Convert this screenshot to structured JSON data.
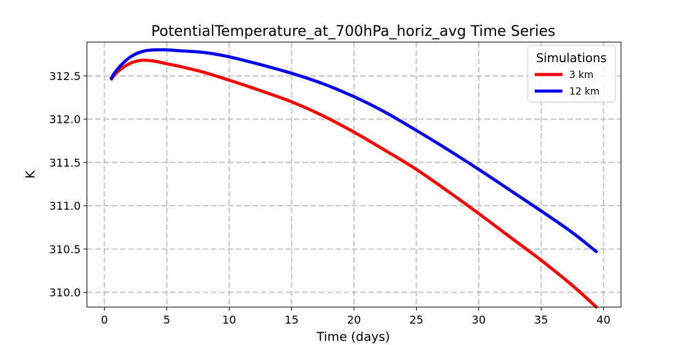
{
  "chart_data": {
    "type": "line",
    "title": "PotentialTemperature_at_700hPa_horiz_avg Time Series",
    "xlabel": "Time (days)",
    "ylabel": "K",
    "xlim": [
      -1.4,
      41.4
    ],
    "ylim": [
      309.83,
      312.89
    ],
    "xticks": [
      0,
      5,
      10,
      15,
      20,
      25,
      30,
      35,
      40
    ],
    "yticks": [
      310.0,
      310.5,
      311.0,
      311.5,
      312.0,
      312.5
    ],
    "xtick_labels": [
      "0",
      "5",
      "10",
      "15",
      "20",
      "25",
      "30",
      "35",
      "40"
    ],
    "ytick_labels": [
      "310.0",
      "310.5",
      "311.0",
      "311.5",
      "312.0",
      "312.5"
    ],
    "grid": true,
    "legend": {
      "title": "Simulations",
      "position": "top-right"
    },
    "series": [
      {
        "name": "3 km",
        "color": "#ff0000",
        "x": [
          0.5,
          1.0,
          2.0,
          3.0,
          4.0,
          5.0,
          6.0,
          8.0,
          10.0,
          12.5,
          15.0,
          17.5,
          20.0,
          22.5,
          25.0,
          27.5,
          30.0,
          32.5,
          35.0,
          37.5,
          39.5
        ],
        "y": [
          312.45,
          312.54,
          312.64,
          312.68,
          312.67,
          312.64,
          312.61,
          312.54,
          312.45,
          312.33,
          312.2,
          312.04,
          311.85,
          311.64,
          311.42,
          311.17,
          310.91,
          310.64,
          310.37,
          310.08,
          309.82
        ]
      },
      {
        "name": "12 km",
        "color": "#0000ee",
        "x": [
          0.5,
          1.0,
          2.0,
          3.0,
          4.0,
          5.0,
          6.0,
          8.0,
          10.0,
          12.5,
          15.0,
          17.5,
          20.0,
          22.5,
          25.0,
          27.5,
          30.0,
          32.5,
          35.0,
          37.5,
          39.5
        ],
        "y": [
          312.46,
          312.57,
          312.71,
          312.78,
          312.8,
          312.8,
          312.79,
          312.77,
          312.72,
          312.63,
          312.53,
          312.41,
          312.26,
          312.08,
          311.87,
          311.65,
          311.42,
          311.18,
          310.94,
          310.69,
          310.46
        ]
      }
    ]
  }
}
